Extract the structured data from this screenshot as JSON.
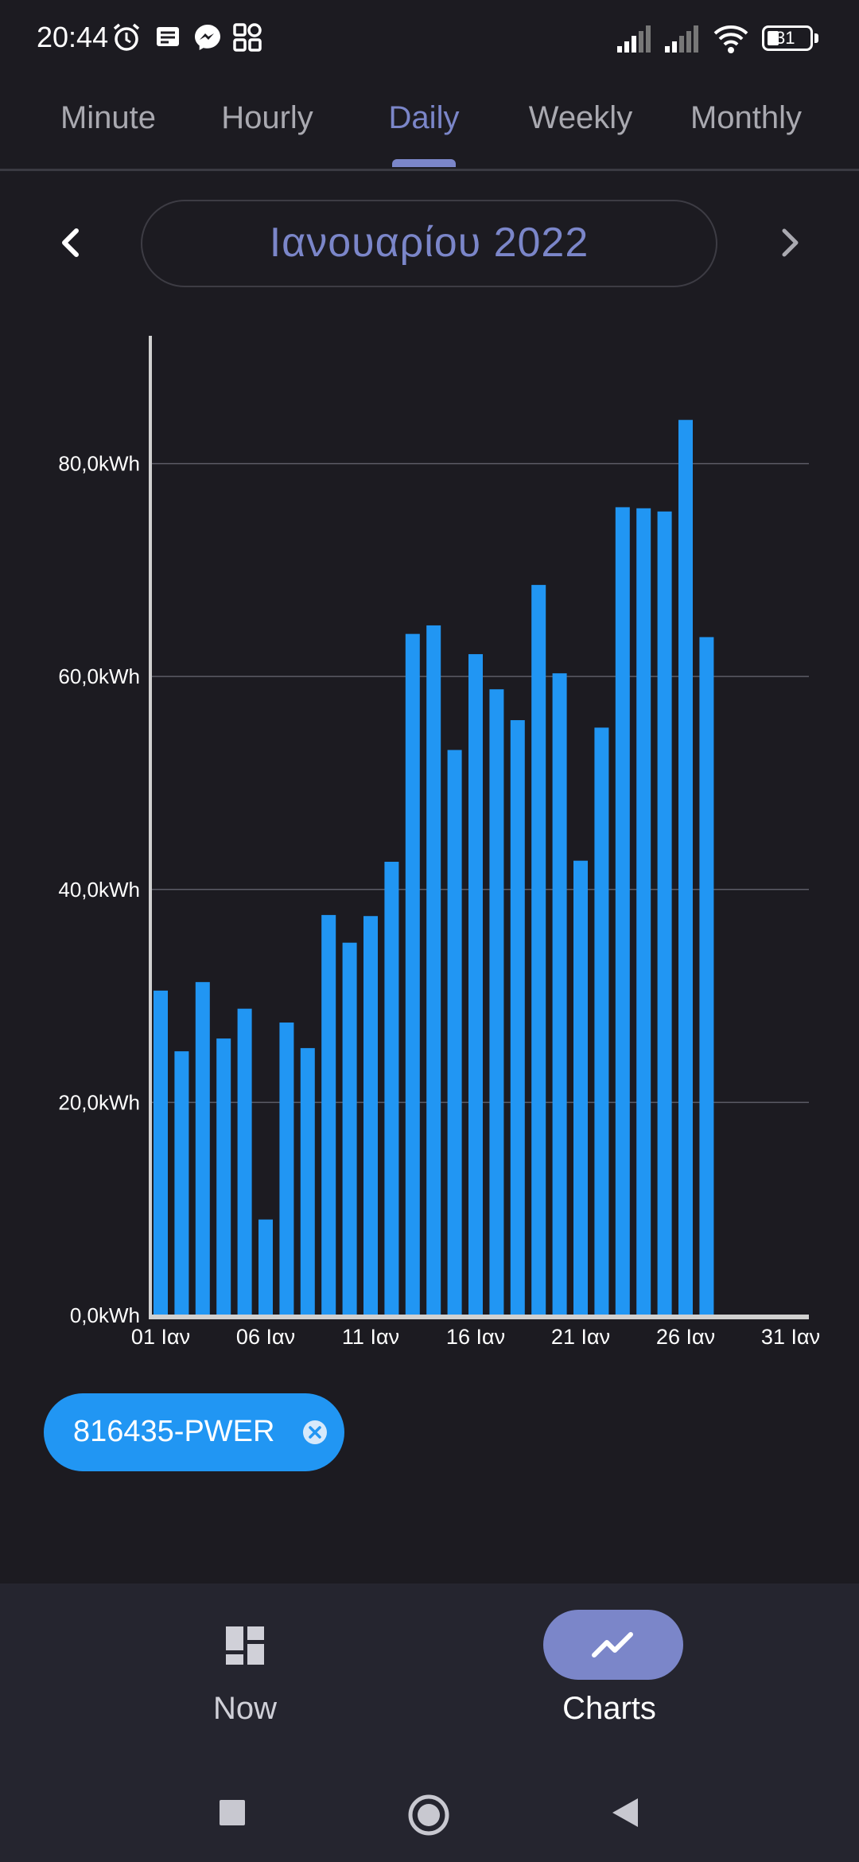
{
  "status_bar": {
    "time": "20:44",
    "icons": [
      "alarm-icon",
      "notification-icon",
      "messenger-icon",
      "apps-icon"
    ],
    "right_icons": [
      "signal-icon",
      "signal-icon",
      "wifi-icon",
      "battery-icon"
    ],
    "battery": "31"
  },
  "tabs": [
    {
      "label": "Minute",
      "active": false
    },
    {
      "label": "Hourly",
      "active": false
    },
    {
      "label": "Daily",
      "active": true
    },
    {
      "label": "Weekly",
      "active": false
    },
    {
      "label": "Monthly",
      "active": false
    }
  ],
  "month_nav": {
    "title": "Ιανουαρίου 2022",
    "prev_icon": "chevron-left-icon",
    "next_icon": "chevron-right-icon"
  },
  "chart_data": {
    "type": "bar",
    "title": "",
    "xlabel": "",
    "ylabel": "",
    "ylim": [
      0,
      92
    ],
    "y_ticks": [
      0,
      20,
      40,
      60,
      80
    ],
    "y_tick_labels": [
      "0,0kWh",
      "20,0kWh",
      "40,0kWh",
      "60,0kWh",
      "80,0kWh"
    ],
    "x_tick_days": [
      1,
      6,
      11,
      16,
      21,
      26,
      31
    ],
    "x_tick_labels": [
      "01 Ιαν",
      "06 Ιαν",
      "11 Ιαν",
      "16 Ιαν",
      "21 Ιαν",
      "26 Ιαν",
      "31 Ιαν"
    ],
    "x_range": [
      1,
      31
    ],
    "grid": true,
    "bar_color": "#2196f3",
    "series": [
      {
        "name": "816435-PWER",
        "days": [
          1,
          2,
          3,
          4,
          5,
          6,
          7,
          8,
          9,
          10,
          11,
          12,
          13,
          14,
          15,
          16,
          17,
          18,
          19,
          20,
          21,
          22,
          23,
          24,
          25,
          26,
          27
        ],
        "values": [
          30.5,
          24.8,
          31.3,
          26.0,
          28.8,
          9.0,
          27.5,
          25.1,
          37.6,
          35.0,
          37.5,
          42.6,
          64.0,
          64.8,
          53.1,
          62.1,
          58.8,
          55.9,
          68.6,
          60.3,
          42.7,
          55.2,
          75.9,
          75.8,
          75.5,
          84.1,
          63.7
        ]
      }
    ]
  },
  "legend_chip": {
    "label": "816435-PWER",
    "close_icon": "close-circle-icon",
    "color": "#2196f3"
  },
  "bottom_nav": [
    {
      "label": "Now",
      "icon": "dashboard-icon",
      "active": false
    },
    {
      "label": "Charts",
      "icon": "trending-up-icon",
      "active": true
    }
  ],
  "system_nav": [
    "recents-square-icon",
    "home-circle-icon",
    "back-triangle-icon"
  ],
  "colors": {
    "background": "#1c1b21",
    "accent": "#7b86c9",
    "bar": "#2196f3",
    "bottom_nav": "#25252f"
  }
}
